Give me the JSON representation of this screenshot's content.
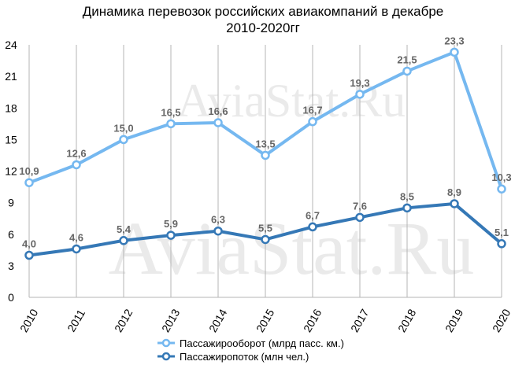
{
  "title": {
    "line1": "Динамика перевозок российских авиакомпаний в декабре",
    "line2": "2010-2020гг"
  },
  "watermark": "AviaStat.Ru",
  "chart_data": {
    "type": "line",
    "title": "Динамика перевозок российских авиакомпаний в декабре 2010-2020гг",
    "categories": [
      "2010",
      "2011",
      "2012",
      "2013",
      "2014",
      "2015",
      "2016",
      "2017",
      "2018",
      "2019",
      "2020"
    ],
    "ylim": [
      0,
      24
    ],
    "yticks": [
      "0",
      "3",
      "6",
      "9",
      "12",
      "15",
      "18",
      "21",
      "24"
    ],
    "grid": "vertical",
    "legend": "bottom",
    "series": [
      {
        "name": "Пассажирооборот (млрд пасс. км.)",
        "color": "#75B8F0",
        "values": [
          10.9,
          12.6,
          15.0,
          16.5,
          16.6,
          13.5,
          16.7,
          19.3,
          21.5,
          23.3,
          10.3
        ],
        "labels": [
          "10,9",
          "12,6",
          "15,0",
          "16,5",
          "16,6",
          "13,5",
          "16,7",
          "19,3",
          "21,5",
          "23,3",
          "10,3"
        ]
      },
      {
        "name": "Пассажиропоток (млн чел.)",
        "color": "#3578B6",
        "values": [
          4.0,
          4.6,
          5.4,
          5.9,
          6.3,
          5.5,
          6.7,
          7.6,
          8.5,
          8.9,
          5.1
        ],
        "labels": [
          "4,0",
          "4,6",
          "5,4",
          "5,9",
          "6,3",
          "5,5",
          "6,7",
          "7,6",
          "8,5",
          "8,9",
          "5,1"
        ]
      }
    ]
  }
}
